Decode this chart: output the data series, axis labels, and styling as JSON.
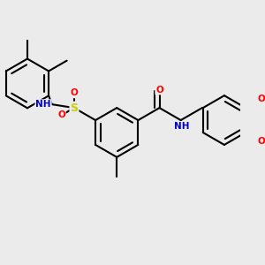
{
  "bg_color": "#ebebeb",
  "line_color": "#000000",
  "bond_width": 1.5,
  "atom_colors": {
    "N": "#0000cd",
    "O": "#ff0000",
    "S": "#cccc00",
    "C": "#000000",
    "H": "#888888"
  }
}
